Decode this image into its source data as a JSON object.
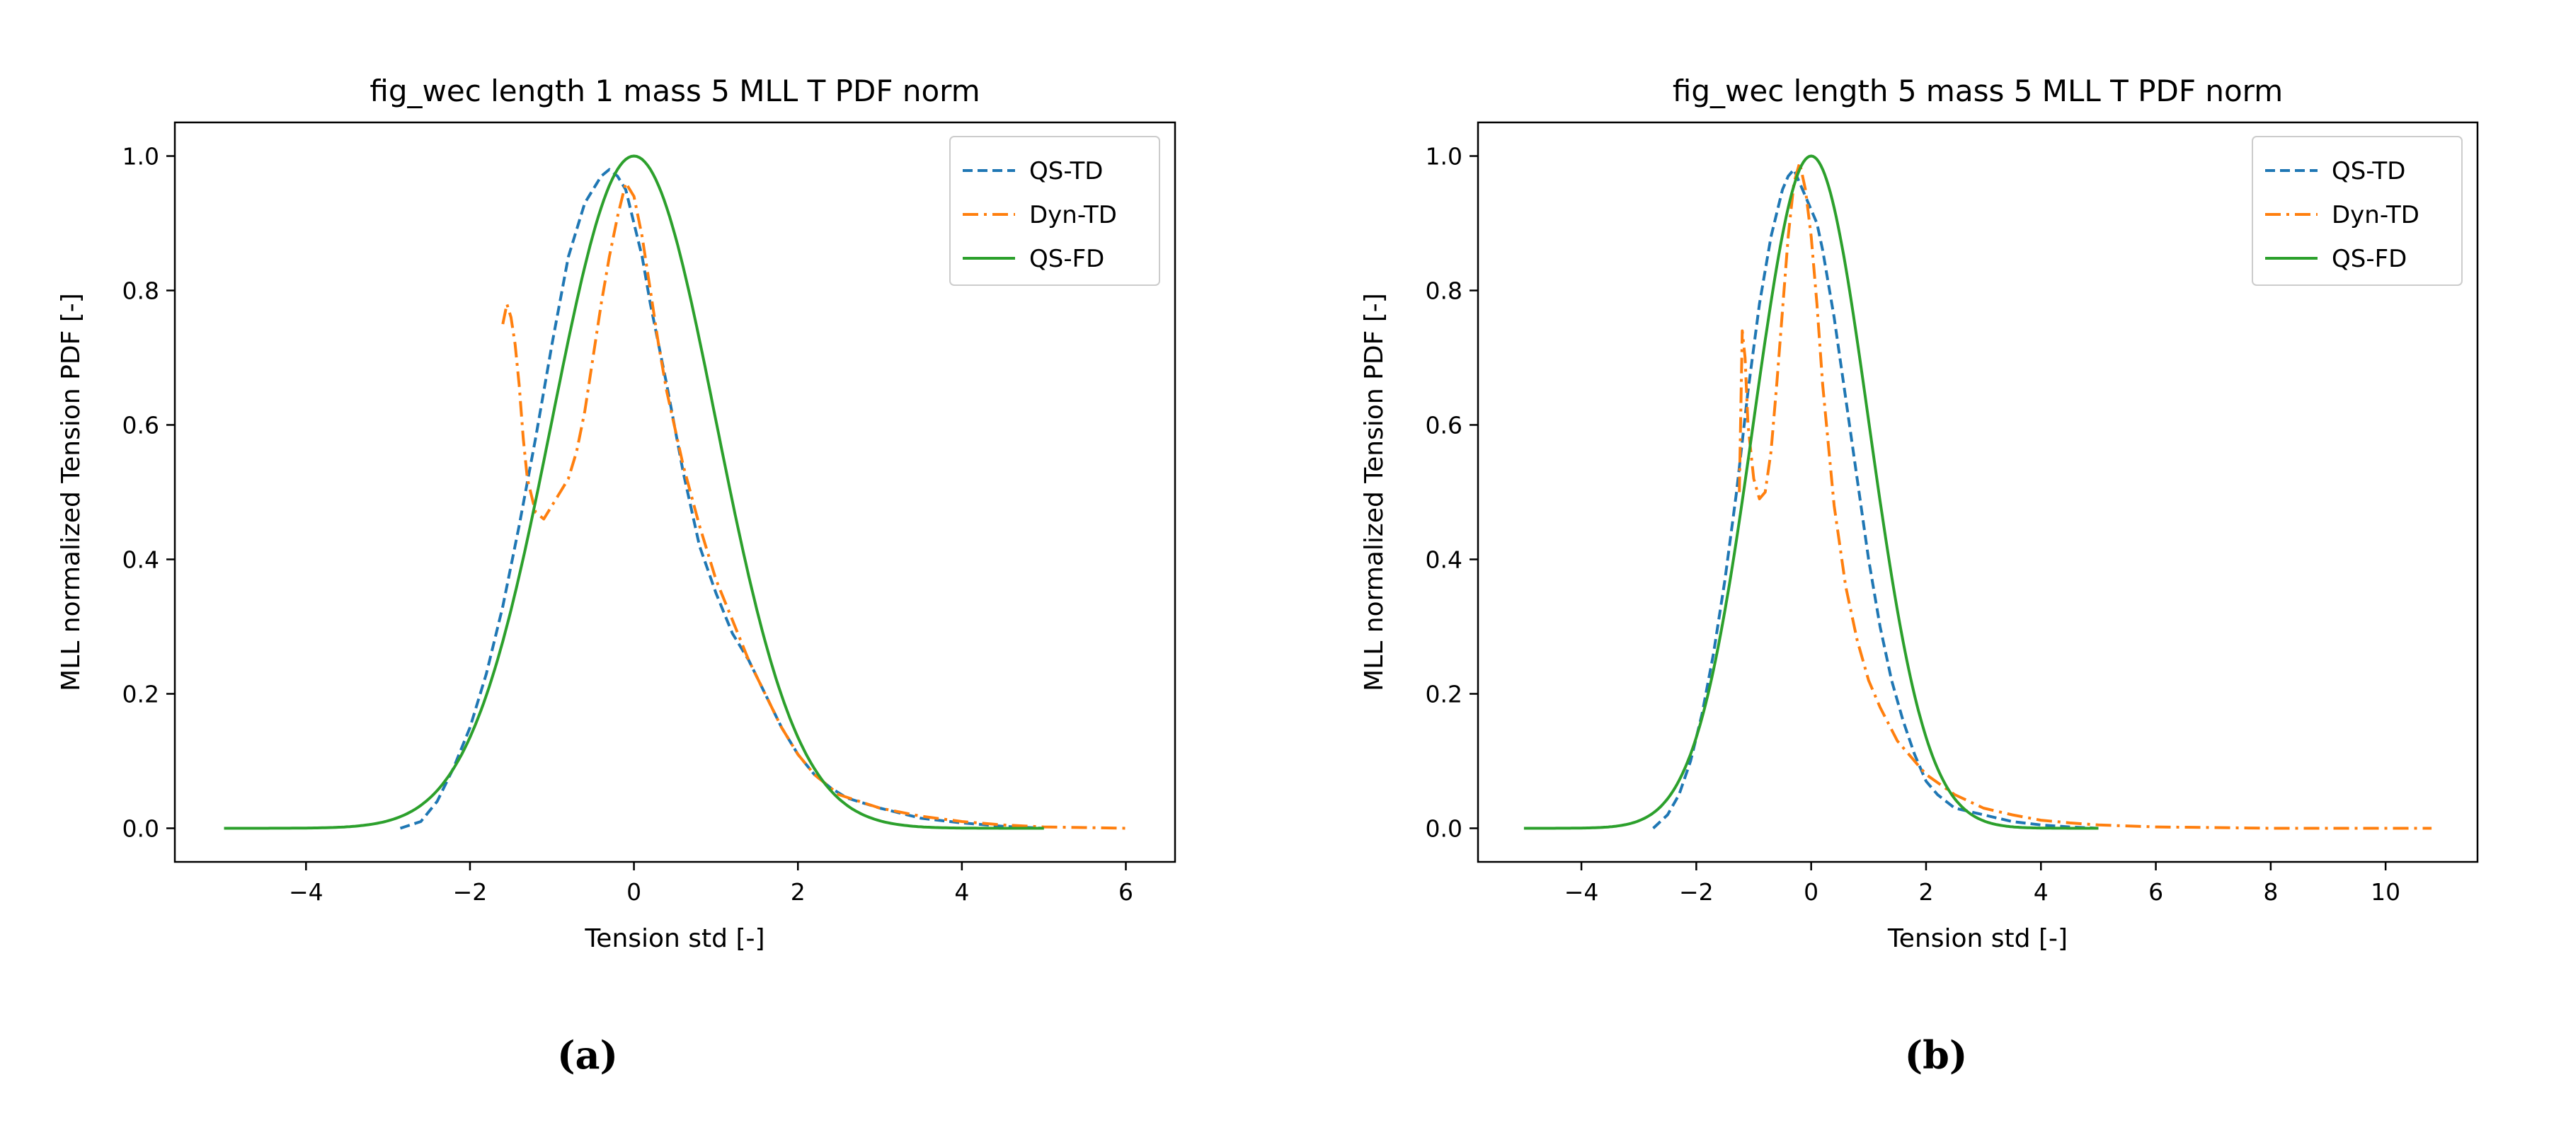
{
  "chart_data": [
    {
      "type": "line",
      "panel": "(a)",
      "title": "fig_wec length 1 mass 5 MLL T PDF norm",
      "xlabel": "Tension std [-]",
      "ylabel": "MLL normalized Tension PDF [-]",
      "xlim": [
        -5.6,
        6.6
      ],
      "ylim": [
        -0.05,
        1.05
      ],
      "xticks": [
        -4,
        -2,
        0,
        2,
        4,
        6
      ],
      "xtick_labels": [
        "−4",
        "−2",
        "0",
        "2",
        "4",
        "6"
      ],
      "yticks": [
        0.0,
        0.2,
        0.4,
        0.6,
        0.8,
        1.0
      ],
      "ytick_labels": [
        "0.0",
        "0.2",
        "0.4",
        "0.6",
        "0.8",
        "1.0"
      ],
      "legend_position": "top-right",
      "series": [
        {
          "name": "QS-TD",
          "color": "#1f77b4",
          "style": "dashed",
          "x": [
            -2.85,
            -2.6,
            -2.4,
            -2.2,
            -2.0,
            -1.8,
            -1.6,
            -1.4,
            -1.2,
            -1.0,
            -0.8,
            -0.6,
            -0.4,
            -0.3,
            -0.2,
            -0.1,
            0.0,
            0.1,
            0.2,
            0.4,
            0.6,
            0.8,
            1.0,
            1.2,
            1.4,
            1.6,
            1.8,
            2.0,
            2.2,
            2.4,
            2.6,
            3.0,
            3.5,
            4.0,
            4.5,
            5.0
          ],
          "y": [
            0.0,
            0.01,
            0.04,
            0.09,
            0.15,
            0.23,
            0.33,
            0.45,
            0.58,
            0.72,
            0.85,
            0.93,
            0.97,
            0.98,
            0.97,
            0.95,
            0.9,
            0.85,
            0.78,
            0.66,
            0.53,
            0.42,
            0.35,
            0.29,
            0.25,
            0.2,
            0.15,
            0.11,
            0.08,
            0.06,
            0.045,
            0.03,
            0.015,
            0.008,
            0.003,
            0.0
          ]
        },
        {
          "name": "Dyn-TD",
          "color": "#ff7f0e",
          "style": "dashdot",
          "x": [
            -1.6,
            -1.55,
            -1.5,
            -1.45,
            -1.4,
            -1.35,
            -1.3,
            -1.2,
            -1.1,
            -1.0,
            -0.9,
            -0.8,
            -0.7,
            -0.6,
            -0.5,
            -0.4,
            -0.3,
            -0.2,
            -0.1,
            0.0,
            0.1,
            0.2,
            0.3,
            0.4,
            0.6,
            0.8,
            1.0,
            1.2,
            1.4,
            1.6,
            1.8,
            2.0,
            2.2,
            2.5,
            3.0,
            3.5,
            4.0,
            4.5,
            5.0,
            5.5,
            6.0
          ],
          "y": [
            0.75,
            0.78,
            0.76,
            0.72,
            0.66,
            0.58,
            0.52,
            0.47,
            0.46,
            0.48,
            0.5,
            0.52,
            0.56,
            0.62,
            0.7,
            0.78,
            0.85,
            0.91,
            0.96,
            0.94,
            0.88,
            0.8,
            0.72,
            0.65,
            0.54,
            0.45,
            0.37,
            0.31,
            0.25,
            0.2,
            0.15,
            0.11,
            0.08,
            0.05,
            0.03,
            0.018,
            0.01,
            0.005,
            0.002,
            0.001,
            0.0
          ]
        },
        {
          "name": "QS-FD",
          "color": "#2ca02c",
          "style": "solid",
          "gaussian": {
            "mu": 0.0,
            "sigma": 1.0,
            "xmin": -5.0,
            "xmax": 5.0
          }
        }
      ]
    },
    {
      "type": "line",
      "panel": "(b)",
      "title": "fig_wec length 5 mass 5 MLL T PDF norm",
      "xlabel": "Tension std [-]",
      "ylabel": "MLL normalized Tension PDF [-]",
      "xlim": [
        -5.8,
        11.6
      ],
      "ylim": [
        -0.05,
        1.05
      ],
      "xticks": [
        -4,
        -2,
        0,
        2,
        4,
        6,
        8,
        10
      ],
      "xtick_labels": [
        "−4",
        "−2",
        "0",
        "2",
        "4",
        "6",
        "8",
        "10"
      ],
      "yticks": [
        0.0,
        0.2,
        0.4,
        0.6,
        0.8,
        1.0
      ],
      "ytick_labels": [
        "0.0",
        "0.2",
        "0.4",
        "0.6",
        "0.8",
        "1.0"
      ],
      "legend_position": "top-right",
      "series": [
        {
          "name": "QS-TD",
          "color": "#1f77b4",
          "style": "dashed",
          "x": [
            -2.75,
            -2.5,
            -2.3,
            -2.1,
            -1.9,
            -1.7,
            -1.5,
            -1.3,
            -1.1,
            -0.9,
            -0.7,
            -0.5,
            -0.4,
            -0.3,
            -0.2,
            -0.1,
            0.0,
            0.1,
            0.2,
            0.4,
            0.6,
            0.8,
            1.0,
            1.2,
            1.4,
            1.6,
            1.8,
            2.0,
            2.2,
            2.5,
            3.0,
            3.5,
            4.0,
            4.5,
            5.0
          ],
          "y": [
            0.0,
            0.02,
            0.05,
            0.1,
            0.17,
            0.26,
            0.37,
            0.5,
            0.65,
            0.78,
            0.88,
            0.95,
            0.97,
            0.98,
            0.96,
            0.94,
            0.92,
            0.9,
            0.86,
            0.76,
            0.64,
            0.52,
            0.4,
            0.3,
            0.22,
            0.16,
            0.11,
            0.07,
            0.05,
            0.03,
            0.02,
            0.01,
            0.005,
            0.002,
            0.0
          ]
        },
        {
          "name": "Dyn-TD",
          "color": "#ff7f0e",
          "style": "dashdot",
          "x": [
            -1.25,
            -1.2,
            -1.15,
            -1.1,
            -1.0,
            -0.9,
            -0.8,
            -0.7,
            -0.6,
            -0.5,
            -0.4,
            -0.3,
            -0.2,
            -0.1,
            0.0,
            0.1,
            0.2,
            0.4,
            0.6,
            0.8,
            1.0,
            1.2,
            1.5,
            2.0,
            2.5,
            3.0,
            3.5,
            4.0,
            4.5,
            5.0,
            6.0,
            7.0,
            8.0,
            9.0,
            10.0,
            10.8
          ],
          "y": [
            0.5,
            0.74,
            0.7,
            0.6,
            0.52,
            0.49,
            0.5,
            0.56,
            0.66,
            0.77,
            0.88,
            0.96,
            0.99,
            0.95,
            0.88,
            0.78,
            0.66,
            0.48,
            0.36,
            0.28,
            0.22,
            0.18,
            0.13,
            0.08,
            0.05,
            0.03,
            0.02,
            0.012,
            0.008,
            0.005,
            0.002,
            0.001,
            0.0,
            0.0,
            0.0,
            0.0
          ]
        },
        {
          "name": "QS-FD",
          "color": "#2ca02c",
          "style": "solid",
          "gaussian": {
            "mu": 0.0,
            "sigma": 1.0,
            "xmin": -5.0,
            "xmax": 5.0
          }
        }
      ]
    }
  ]
}
